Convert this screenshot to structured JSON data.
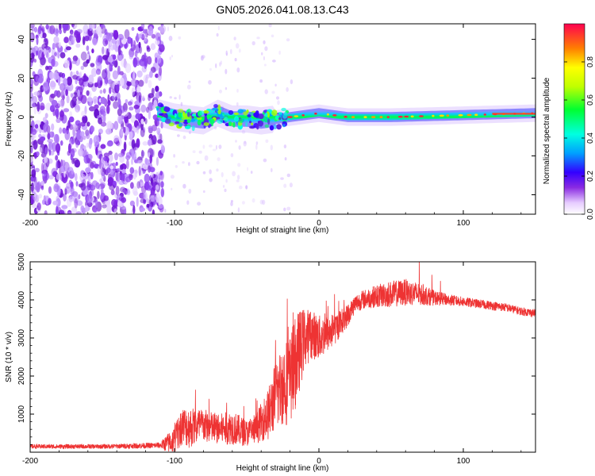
{
  "figure_title": "GN05.2026.041.08.13.C43",
  "colors": {
    "snr_line": "#ee3333",
    "axis": "#000000",
    "noise_purple": "#7b1fe0"
  },
  "chart_data": [
    {
      "type": "heatmap",
      "name": "spectrogram",
      "xlabel": "Height of straight line (km)",
      "ylabel": "Frequency (Hz)",
      "xlim": [
        -200,
        150
      ],
      "ylim": [
        -50,
        48
      ],
      "xticks": [
        -200,
        -100,
        0,
        100
      ],
      "xtick_labels": [
        "-200",
        "-100",
        "0",
        "100"
      ],
      "yticks": [
        -40,
        -20,
        0,
        20,
        40
      ],
      "ytick_labels": [
        "-40",
        "-20",
        "0",
        "20",
        "40"
      ],
      "noise_region_x": [
        -200,
        -108
      ],
      "signal_center_hz": [
        [
          -110,
          2
        ],
        [
          -100,
          0
        ],
        [
          -90,
          -1
        ],
        [
          -80,
          -2
        ],
        [
          -70,
          2
        ],
        [
          -60,
          -1
        ],
        [
          -50,
          -1
        ],
        [
          -40,
          -2
        ],
        [
          -30,
          -1
        ],
        [
          -20,
          0
        ],
        [
          -10,
          1
        ],
        [
          0,
          2
        ],
        [
          10,
          1
        ],
        [
          20,
          0
        ],
        [
          50,
          0
        ],
        [
          100,
          1
        ],
        [
          150,
          2
        ]
      ],
      "colorbar": {
        "label": "Normalized spectral amplitude",
        "range": [
          0,
          1
        ],
        "ticks": [
          0.0,
          0.2,
          0.4,
          0.6,
          0.8
        ],
        "tick_labels": [
          "0.0",
          "0.2",
          "0.4",
          "0.6",
          "0.8"
        ]
      }
    },
    {
      "type": "line",
      "name": "snr",
      "xlabel": "Height of straight line (km)",
      "ylabel": "SNR (10 * v/v)",
      "xlim": [
        -200,
        150
      ],
      "ylim": [
        0,
        5000
      ],
      "xticks": [
        -200,
        -100,
        0,
        100
      ],
      "xtick_labels": [
        "-200",
        "-100",
        "0",
        "100"
      ],
      "yticks": [
        1000,
        2000,
        3000,
        4000,
        5000
      ],
      "ytick_labels": [
        "1000",
        "2000",
        "3000",
        "4000",
        "5000"
      ],
      "series": [
        {
          "name": "SNR",
          "x": [
            -200,
            -150,
            -110,
            -100,
            -95,
            -90,
            -80,
            -70,
            -60,
            -50,
            -45,
            -40,
            -35,
            -30,
            -25,
            -20,
            -15,
            -10,
            -5,
            0,
            5,
            10,
            15,
            20,
            25,
            30,
            40,
            50,
            60,
            70,
            80,
            90,
            100,
            110,
            120,
            130,
            140,
            150
          ],
          "values": [
            150,
            150,
            180,
            300,
            700,
            650,
            700,
            600,
            650,
            500,
            550,
            800,
            1000,
            1500,
            1800,
            1900,
            2500,
            3000,
            3100,
            3000,
            3100,
            3200,
            3400,
            3600,
            3900,
            4000,
            4100,
            4150,
            4200,
            4150,
            4050,
            4000,
            3950,
            3900,
            3850,
            3800,
            3700,
            3650
          ],
          "amplitude": [
            60,
            60,
            80,
            400,
            500,
            550,
            450,
            400,
            450,
            350,
            350,
            500,
            700,
            900,
            1100,
            1200,
            1200,
            800,
            650,
            600,
            500,
            450,
            350,
            300,
            250,
            250,
            300,
            350,
            350,
            300,
            200,
            150,
            130,
            120,
            120,
            110,
            110,
            110
          ]
        }
      ]
    }
  ]
}
